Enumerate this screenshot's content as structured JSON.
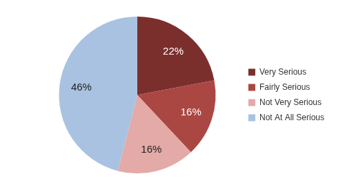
{
  "chart_data": {
    "type": "pie",
    "categories": [
      "Very Serious",
      "Fairly Serious",
      "Not Very Serious",
      "Not At All Serious"
    ],
    "values": [
      22,
      16,
      16,
      46
    ],
    "value_labels": [
      "22%",
      "16%",
      "16%",
      "46%"
    ],
    "colors": [
      "#7b2f2c",
      "#aa4742",
      "#e3aaa7",
      "#a9c2e1"
    ],
    "legend": "right",
    "data_labels": true
  }
}
